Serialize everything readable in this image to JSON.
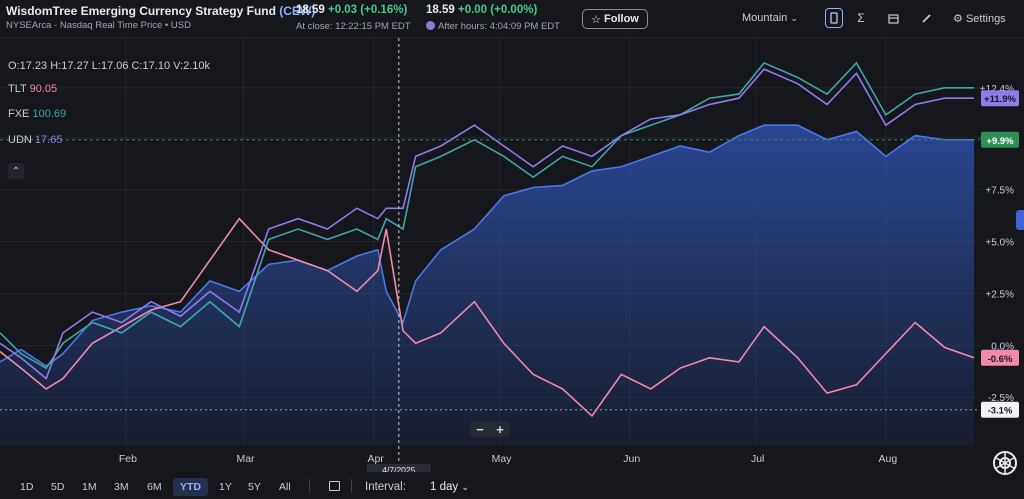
{
  "header": {
    "fund_name": "WisdomTree Emerging Currency Strategy Fund",
    "ticker": "(CEW)",
    "exchange_line": "NYSEArca - Nasdaq Real Time Price • USD",
    "close_price": "18.59",
    "close_change": "+0.03",
    "close_change_pct": "(+0.16%)",
    "close_time": "At close: 12:22:15 PM EDT",
    "ah_price": "18.59",
    "ah_change": "+0.00",
    "ah_change_pct": "(+0.00%)",
    "ah_time": "After hours: 4:04:09 PM EDT",
    "follow_label": "Follow",
    "chart_type_label": "Mountain",
    "settings_label": "Settings"
  },
  "legend": {
    "ohlc": "O:17.23  H:17.27  L:17.06  C:17.10  V:2.10k",
    "items": [
      {
        "name": "TLT",
        "value": "90.05",
        "color": "#f08aa8"
      },
      {
        "name": "FXE",
        "value": "100.69",
        "color": "#3fa6a8"
      },
      {
        "name": "UDN",
        "value": "17.65",
        "color": "#8f7bea"
      }
    ]
  },
  "crosshair_label": "4/7/2025",
  "zoom": {
    "minus": "−",
    "plus": "+"
  },
  "bottom": {
    "ranges": [
      "1D",
      "5D",
      "1M",
      "3M",
      "6M",
      "YTD",
      "1Y",
      "5Y",
      "All"
    ],
    "active_range": "YTD",
    "interval_label": "Interval:",
    "interval_value": "1 day"
  },
  "colors": {
    "mountain_line": "#4a78e6",
    "mountain_fill": "#2e4fa8",
    "tlt": "#f08aa8",
    "fxe": "#3fa6a8",
    "udn": "#8f7bea",
    "background": "#15171d"
  },
  "chart_data": {
    "type": "area",
    "title": "",
    "ylabel": "",
    "ylim": [
      -4.8,
      14.8
    ],
    "y_ticks": [
      "+12.4%",
      "+10.0%",
      "+7.5%",
      "+5.0%",
      "+2.5%",
      "0.0%",
      "-2.5%"
    ],
    "x_ticks": [
      "Feb",
      "Mar",
      "Apr",
      "May",
      "Jun",
      "Jul",
      "Aug"
    ],
    "x_tick_dates": [
      "2025-02-01",
      "2025-03-01",
      "2025-04-01",
      "2025-05-01",
      "2025-06-01",
      "2025-07-01",
      "2025-08-01"
    ],
    "x_range": [
      "2025-01-02",
      "2025-08-22"
    ],
    "end_labels": [
      {
        "text": "+11.9%",
        "value": 11.9,
        "series": "UDN"
      },
      {
        "text": "+9.9%",
        "value": 9.9,
        "series": "CEW"
      },
      {
        "text": "-0.6%",
        "value": -0.6,
        "series": "TLT"
      },
      {
        "text": "-3.1%",
        "value": -3.1,
        "series": "reference"
      }
    ],
    "series": [
      {
        "name": "CEW",
        "kind": "area",
        "values": [
          [
            "2025-01-02",
            -0.8
          ],
          [
            "2025-01-07",
            -0.2
          ],
          [
            "2025-01-13",
            -1.0
          ],
          [
            "2025-01-17",
            -0.4
          ],
          [
            "2025-01-24",
            1.2
          ],
          [
            "2025-01-31",
            1.6
          ],
          [
            "2025-02-07",
            1.9
          ],
          [
            "2025-02-14",
            1.6
          ],
          [
            "2025-02-21",
            3.1
          ],
          [
            "2025-02-28",
            2.6
          ],
          [
            "2025-03-07",
            3.9
          ],
          [
            "2025-03-14",
            4.1
          ],
          [
            "2025-03-21",
            3.6
          ],
          [
            "2025-03-28",
            4.3
          ],
          [
            "2025-04-02",
            4.6
          ],
          [
            "2025-04-04",
            2.6
          ],
          [
            "2025-04-08",
            1.1
          ],
          [
            "2025-04-11",
            3.1
          ],
          [
            "2025-04-17",
            4.6
          ],
          [
            "2025-04-25",
            5.6
          ],
          [
            "2025-05-02",
            7.2
          ],
          [
            "2025-05-09",
            7.6
          ],
          [
            "2025-05-16",
            7.7
          ],
          [
            "2025-05-23",
            8.4
          ],
          [
            "2025-05-30",
            8.6
          ],
          [
            "2025-06-06",
            9.1
          ],
          [
            "2025-06-13",
            9.6
          ],
          [
            "2025-06-20",
            9.3
          ],
          [
            "2025-06-27",
            10.1
          ],
          [
            "2025-07-03",
            10.6
          ],
          [
            "2025-07-11",
            10.6
          ],
          [
            "2025-07-18",
            9.9
          ],
          [
            "2025-07-25",
            10.3
          ],
          [
            "2025-08-01",
            9.1
          ],
          [
            "2025-08-08",
            10.1
          ],
          [
            "2025-08-15",
            9.9
          ],
          [
            "2025-08-22",
            9.9
          ]
        ]
      },
      {
        "name": "TLT",
        "kind": "line",
        "values": [
          [
            "2025-01-02",
            -0.3
          ],
          [
            "2025-01-07",
            -1.1
          ],
          [
            "2025-01-13",
            -2.1
          ],
          [
            "2025-01-17",
            -1.6
          ],
          [
            "2025-01-24",
            0.1
          ],
          [
            "2025-01-31",
            0.9
          ],
          [
            "2025-02-07",
            1.7
          ],
          [
            "2025-02-14",
            2.1
          ],
          [
            "2025-02-21",
            4.1
          ],
          [
            "2025-02-28",
            6.1
          ],
          [
            "2025-03-07",
            4.6
          ],
          [
            "2025-03-14",
            4.1
          ],
          [
            "2025-03-21",
            3.6
          ],
          [
            "2025-03-28",
            2.6
          ],
          [
            "2025-04-02",
            3.6
          ],
          [
            "2025-04-04",
            5.6
          ],
          [
            "2025-04-08",
            0.7
          ],
          [
            "2025-04-11",
            0.1
          ],
          [
            "2025-04-17",
            0.6
          ],
          [
            "2025-04-25",
            2.1
          ],
          [
            "2025-05-02",
            0.1
          ],
          [
            "2025-05-09",
            -1.4
          ],
          [
            "2025-05-16",
            -2.1
          ],
          [
            "2025-05-23",
            -3.4
          ],
          [
            "2025-05-30",
            -1.4
          ],
          [
            "2025-06-06",
            -2.1
          ],
          [
            "2025-06-13",
            -1.1
          ],
          [
            "2025-06-20",
            -0.6
          ],
          [
            "2025-06-27",
            -0.8
          ],
          [
            "2025-07-03",
            0.9
          ],
          [
            "2025-07-11",
            -0.6
          ],
          [
            "2025-07-18",
            -2.3
          ],
          [
            "2025-07-25",
            -1.9
          ],
          [
            "2025-08-01",
            -0.4
          ],
          [
            "2025-08-08",
            1.1
          ],
          [
            "2025-08-15",
            -0.1
          ],
          [
            "2025-08-22",
            -0.6
          ]
        ]
      },
      {
        "name": "FXE",
        "kind": "line",
        "values": [
          [
            "2025-01-02",
            0.6
          ],
          [
            "2025-01-07",
            -0.4
          ],
          [
            "2025-01-13",
            -1.1
          ],
          [
            "2025-01-17",
            0.1
          ],
          [
            "2025-01-24",
            1.1
          ],
          [
            "2025-01-31",
            0.6
          ],
          [
            "2025-02-07",
            1.6
          ],
          [
            "2025-02-14",
            0.9
          ],
          [
            "2025-02-21",
            2.1
          ],
          [
            "2025-02-28",
            0.9
          ],
          [
            "2025-03-07",
            5.1
          ],
          [
            "2025-03-14",
            5.6
          ],
          [
            "2025-03-21",
            5.1
          ],
          [
            "2025-03-28",
            5.6
          ],
          [
            "2025-04-02",
            5.1
          ],
          [
            "2025-04-04",
            6.1
          ],
          [
            "2025-04-08",
            5.6
          ],
          [
            "2025-04-11",
            8.6
          ],
          [
            "2025-04-17",
            9.1
          ],
          [
            "2025-04-25",
            9.9
          ],
          [
            "2025-05-02",
            9.1
          ],
          [
            "2025-05-09",
            8.1
          ],
          [
            "2025-05-16",
            9.1
          ],
          [
            "2025-05-23",
            8.6
          ],
          [
            "2025-05-30",
            10.1
          ],
          [
            "2025-06-06",
            10.6
          ],
          [
            "2025-06-13",
            11.1
          ],
          [
            "2025-06-20",
            11.9
          ],
          [
            "2025-06-27",
            12.1
          ],
          [
            "2025-07-03",
            13.6
          ],
          [
            "2025-07-11",
            12.9
          ],
          [
            "2025-07-18",
            12.1
          ],
          [
            "2025-07-25",
            13.6
          ],
          [
            "2025-08-01",
            11.1
          ],
          [
            "2025-08-08",
            12.1
          ],
          [
            "2025-08-15",
            12.4
          ],
          [
            "2025-08-22",
            12.4
          ]
        ]
      },
      {
        "name": "UDN",
        "kind": "line",
        "values": [
          [
            "2025-01-02",
            0.1
          ],
          [
            "2025-01-07",
            -0.6
          ],
          [
            "2025-01-13",
            -1.6
          ],
          [
            "2025-01-17",
            0.6
          ],
          [
            "2025-01-24",
            1.6
          ],
          [
            "2025-01-31",
            1.1
          ],
          [
            "2025-02-07",
            2.1
          ],
          [
            "2025-02-14",
            1.4
          ],
          [
            "2025-02-21",
            2.6
          ],
          [
            "2025-02-28",
            1.6
          ],
          [
            "2025-03-07",
            5.6
          ],
          [
            "2025-03-14",
            6.1
          ],
          [
            "2025-03-21",
            5.6
          ],
          [
            "2025-03-28",
            6.6
          ],
          [
            "2025-04-02",
            6.1
          ],
          [
            "2025-04-04",
            6.6
          ],
          [
            "2025-04-08",
            6.6
          ],
          [
            "2025-04-11",
            9.1
          ],
          [
            "2025-04-17",
            9.6
          ],
          [
            "2025-04-25",
            10.6
          ],
          [
            "2025-05-02",
            9.6
          ],
          [
            "2025-05-09",
            8.6
          ],
          [
            "2025-05-16",
            9.6
          ],
          [
            "2025-05-23",
            9.1
          ],
          [
            "2025-05-30",
            10.1
          ],
          [
            "2025-06-06",
            10.9
          ],
          [
            "2025-06-13",
            11.1
          ],
          [
            "2025-06-20",
            11.6
          ],
          [
            "2025-06-27",
            11.9
          ],
          [
            "2025-07-03",
            13.3
          ],
          [
            "2025-07-11",
            12.6
          ],
          [
            "2025-07-18",
            11.6
          ],
          [
            "2025-07-25",
            13.1
          ],
          [
            "2025-08-01",
            10.6
          ],
          [
            "2025-08-08",
            11.6
          ],
          [
            "2025-08-15",
            11.9
          ],
          [
            "2025-08-22",
            11.9
          ]
        ]
      }
    ]
  }
}
